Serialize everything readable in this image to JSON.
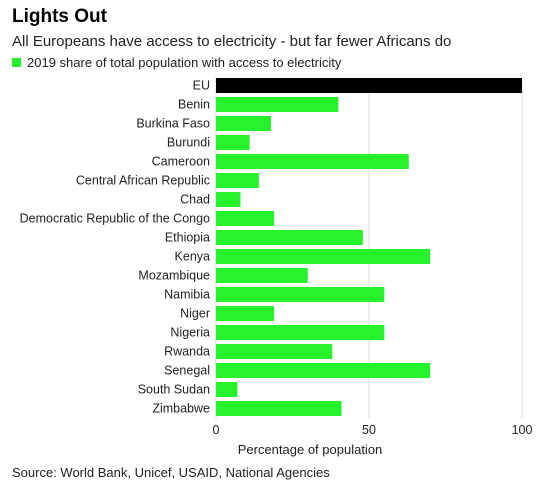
{
  "title": "Lights Out",
  "subtitle": "All Europeans have access to electricity - but far fewer Africans do",
  "source": "Source: World Bank, Unicef, USAID, National Agencies",
  "colors": {
    "highlight": "#000000",
    "bar": "#26f22b"
  },
  "chart_data": {
    "type": "bar",
    "orientation": "horizontal",
    "title": "Lights Out",
    "subtitle": "All Europeans have access to electricity - but far fewer Africans do",
    "xlabel": "Percentage of population",
    "ylabel": "",
    "xlim": [
      0,
      100
    ],
    "xticks": [
      0,
      50,
      100
    ],
    "grid": true,
    "legend_position": "top-left",
    "series": [
      {
        "name": "2019 share of total population with access to electricity",
        "color": "#26f22b"
      }
    ],
    "categories": [
      "EU",
      "Benin",
      "Burkina Faso",
      "Burundi",
      "Cameroon",
      "Central African Republic",
      "Chad",
      "Democratic Republic of the Congo",
      "Ethiopia",
      "Kenya",
      "Mozambique",
      "Namibia",
      "Niger",
      "Nigeria",
      "Rwanda",
      "Senegal",
      "South Sudan",
      "Zimbabwe"
    ],
    "values": [
      100,
      40,
      18,
      11,
      63,
      14,
      8,
      19,
      48,
      70,
      30,
      55,
      19,
      55,
      38,
      70,
      7,
      41
    ],
    "highlight_category": "EU"
  }
}
